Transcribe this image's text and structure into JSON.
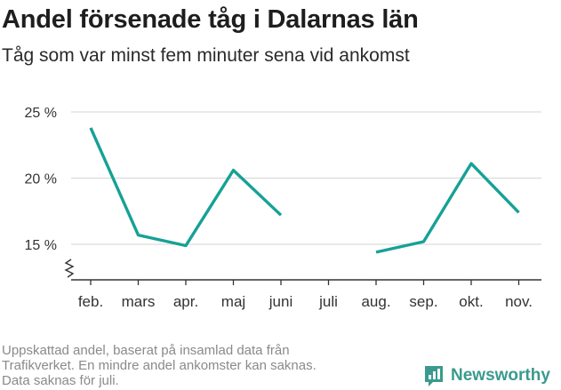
{
  "title": "Andel försenade tåg i Dalarnas län",
  "subtitle": "Tåg som var minst fem minuter sena vid ankomst",
  "footnote": [
    "Uppskattad andel, baserat på insamlad data från",
    "Trafikverket. En mindre andel ankomster kan saknas.",
    "Data saknas för juli."
  ],
  "brand": {
    "name": "Newsworthy",
    "icon": "newsworthy-logo-icon",
    "color": "#3a9a8e"
  },
  "chart_data": {
    "type": "line",
    "categories": [
      "feb.",
      "mars",
      "apr.",
      "maj",
      "juni",
      "juli",
      "aug.",
      "sep.",
      "okt.",
      "nov."
    ],
    "series": [
      {
        "values": [
          23.8,
          15.7,
          14.9,
          20.6,
          17.2,
          null,
          14.4,
          15.2,
          21.1,
          17.4
        ],
        "color": "#16a196"
      }
    ],
    "yticks": [
      15,
      20,
      25
    ],
    "ytick_labels": [
      "15 %",
      "20 %",
      "25 %"
    ],
    "ylim": [
      12.5,
      26.5
    ],
    "axis_break": true,
    "grid": true,
    "xlabel": "",
    "ylabel": ""
  }
}
